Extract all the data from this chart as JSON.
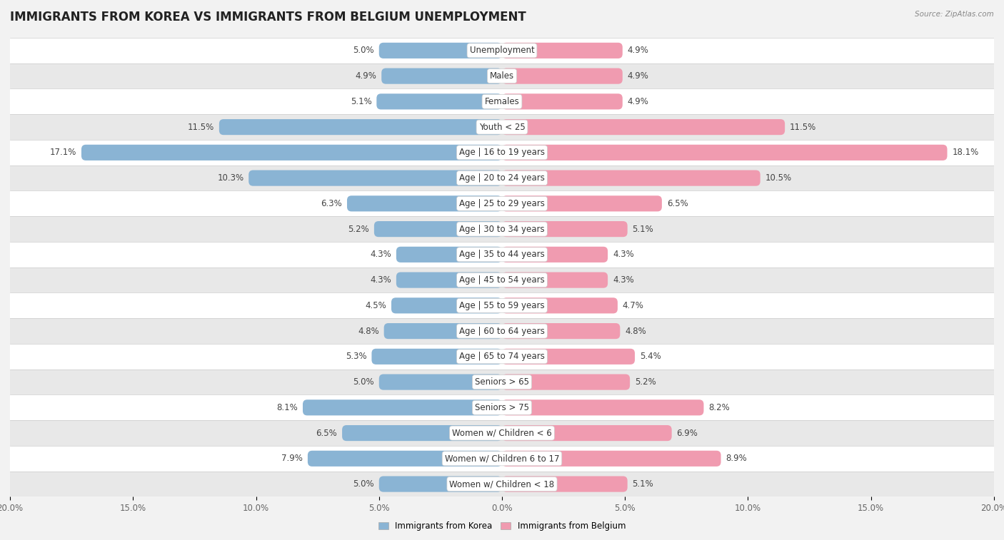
{
  "title": "IMMIGRANTS FROM KOREA VS IMMIGRANTS FROM BELGIUM UNEMPLOYMENT",
  "source": "Source: ZipAtlas.com",
  "categories": [
    "Unemployment",
    "Males",
    "Females",
    "Youth < 25",
    "Age | 16 to 19 years",
    "Age | 20 to 24 years",
    "Age | 25 to 29 years",
    "Age | 30 to 34 years",
    "Age | 35 to 44 years",
    "Age | 45 to 54 years",
    "Age | 55 to 59 years",
    "Age | 60 to 64 years",
    "Age | 65 to 74 years",
    "Seniors > 65",
    "Seniors > 75",
    "Women w/ Children < 6",
    "Women w/ Children 6 to 17",
    "Women w/ Children < 18"
  ],
  "korea_values": [
    5.0,
    4.9,
    5.1,
    11.5,
    17.1,
    10.3,
    6.3,
    5.2,
    4.3,
    4.3,
    4.5,
    4.8,
    5.3,
    5.0,
    8.1,
    6.5,
    7.9,
    5.0
  ],
  "belgium_values": [
    4.9,
    4.9,
    4.9,
    11.5,
    18.1,
    10.5,
    6.5,
    5.1,
    4.3,
    4.3,
    4.7,
    4.8,
    5.4,
    5.2,
    8.2,
    6.9,
    8.9,
    5.1
  ],
  "korea_color": "#8ab4d4",
  "belgium_color": "#f09bb0",
  "korea_color_dark": "#5a8ab0",
  "belgium_color_dark": "#d06080",
  "korea_label": "Immigrants from Korea",
  "belgium_label": "Immigrants from Belgium",
  "xlim": 20.0,
  "background_color": "#f2f2f2",
  "row_even_color": "#ffffff",
  "row_odd_color": "#e8e8e8",
  "title_fontsize": 12,
  "label_fontsize": 8.5,
  "value_fontsize": 8.5,
  "tick_fontsize": 8.5,
  "bar_height": 0.62
}
